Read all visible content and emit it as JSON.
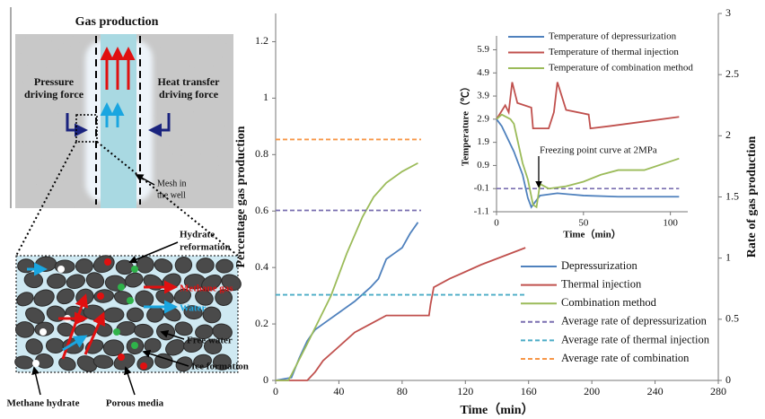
{
  "diagram": {
    "title": "Gas production",
    "pressure_label": [
      "Pressure",
      "driving force"
    ],
    "heat_label": [
      "Heat transfer",
      "driving force"
    ],
    "mesh_label": [
      "Mesh in",
      "the well"
    ],
    "reformation_label": [
      "Hydrate",
      "reformation"
    ],
    "methane_gas": "Methane gas",
    "water": "Water",
    "free_water": "Free water",
    "ice_formation": "Ice formation",
    "methane_hydrate": "Methane hydrate",
    "porous_media": "Porous media"
  },
  "chart_data": [
    {
      "type": "line",
      "xlabel": "Time（min）",
      "ylabel": "Percentage gas production",
      "y2label": "Rate of gas production",
      "xlim": [
        0,
        280
      ],
      "xticks": [
        0,
        40,
        80,
        120,
        160,
        200,
        240,
        280
      ],
      "ylim": [
        0,
        1.3
      ],
      "yticks": [
        0,
        0.2,
        0.4,
        0.6,
        0.8,
        1,
        1.2
      ],
      "y2lim": [
        0,
        3
      ],
      "y2ticks": [
        0,
        0.5,
        1,
        1.5,
        2,
        2.5,
        3
      ],
      "series": [
        {
          "name": "Depressurization",
          "color": "#4f81bd",
          "x": [
            0,
            10,
            15,
            20,
            25,
            30,
            40,
            50,
            60,
            65,
            70,
            75,
            80,
            85,
            90
          ],
          "values": [
            0,
            0.01,
            0.08,
            0.14,
            0.18,
            0.2,
            0.24,
            0.28,
            0.33,
            0.36,
            0.43,
            0.45,
            0.47,
            0.52,
            0.56
          ]
        },
        {
          "name": "Thermal injection",
          "color": "#c0504d",
          "x": [
            0,
            20,
            25,
            30,
            40,
            50,
            60,
            70,
            97,
            98,
            100,
            110,
            130,
            158
          ],
          "values": [
            0,
            0,
            0.03,
            0.07,
            0.12,
            0.17,
            0.2,
            0.23,
            0.23,
            0.27,
            0.33,
            0.36,
            0.41,
            0.47
          ]
        },
        {
          "name": "Combination method",
          "color": "#9bbb59",
          "x": [
            0,
            8,
            10,
            20,
            35,
            45,
            55,
            62,
            70,
            80,
            90
          ],
          "values": [
            0,
            0,
            0.02,
            0.13,
            0.3,
            0.45,
            0.58,
            0.65,
            0.7,
            0.74,
            0.77
          ]
        },
        {
          "name": "Average rate of depressurization",
          "color": "#7a6fb0",
          "dashed": true,
          "axis": "y2",
          "x": [
            0,
            92
          ],
          "values": [
            1.39,
            1.39
          ]
        },
        {
          "name": "Average rate of thermal injection",
          "color": "#4bacc6",
          "dashed": true,
          "axis": "y2",
          "x": [
            0,
            158
          ],
          "values": [
            0.7,
            0.7
          ]
        },
        {
          "name": "Average rate of combination",
          "color": "#f79646",
          "dashed": true,
          "axis": "y2",
          "x": [
            0,
            92
          ],
          "values": [
            1.97,
            1.97
          ]
        }
      ]
    },
    {
      "type": "line",
      "xlabel": "Time（min）",
      "ylabel": "Temperature（℃）",
      "xlim": [
        0,
        110
      ],
      "xticks": [
        0,
        50,
        100
      ],
      "ylim": [
        -1.1,
        6.5
      ],
      "yticks": [
        -1.1,
        -0.1,
        0.9,
        1.9,
        2.9,
        3.9,
        4.9,
        5.9
      ],
      "series": [
        {
          "name": "Temperature of depressurization",
          "color": "#4f81bd",
          "x": [
            0,
            3,
            10,
            15,
            18,
            20,
            25,
            35,
            50,
            70,
            105
          ],
          "values": [
            2.9,
            2.6,
            1.5,
            0.5,
            -0.5,
            -0.9,
            -0.4,
            -0.3,
            -0.4,
            -0.45,
            -0.45
          ]
        },
        {
          "name": "Temperature of thermal injection",
          "color": "#c0504d",
          "x": [
            0,
            5,
            7,
            9,
            12,
            20,
            21,
            30,
            33,
            35,
            40,
            53,
            54,
            65,
            85,
            105
          ],
          "values": [
            2.9,
            3.5,
            3.2,
            4.5,
            3.6,
            3.4,
            2.5,
            2.5,
            3.2,
            4.5,
            3.3,
            3.1,
            2.5,
            2.6,
            2.8,
            3.0
          ]
        },
        {
          "name": "Temperature of combination method",
          "color": "#9bbb59",
          "x": [
            0,
            3,
            8,
            10,
            15,
            18,
            21,
            23,
            25,
            30,
            40,
            50,
            60,
            70,
            85,
            105
          ],
          "values": [
            2.9,
            3.1,
            2.9,
            2.7,
            1,
            0.3,
            -0.8,
            -0.9,
            0.1,
            -0.1,
            0,
            0.2,
            0.5,
            0.7,
            0.7,
            1.2
          ]
        }
      ],
      "freezing_point": {
        "label": "Freezing point curve at 2MPa",
        "color": "#7a6fb0",
        "x": [
          0,
          105
        ],
        "y": -0.1
      }
    }
  ]
}
